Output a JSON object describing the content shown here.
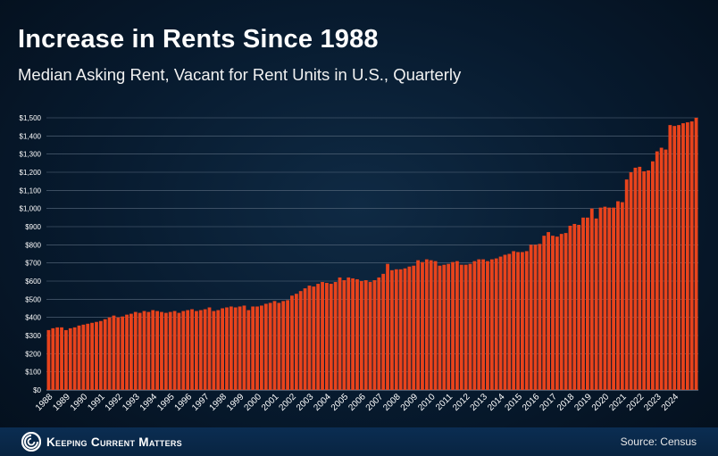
{
  "header": {
    "title": "Increase in Rents Since 1988",
    "subtitle": "Median Asking Rent, Vacant for Rent Units in U.S., Quarterly"
  },
  "footer": {
    "brand": "Keeping Current Matters",
    "source": "Source: Census"
  },
  "colors": {
    "bar": "#e8431c",
    "bar_edge": "#ff6a3c",
    "grid": "#5b6d80",
    "background": "#071a2e"
  },
  "chart_data": {
    "type": "bar",
    "title": "Increase in Rents Since 1988",
    "subtitle": "Median Asking Rent, Vacant for Rent Units in U.S., Quarterly",
    "xlabel": "",
    "ylabel": "",
    "ylim": [
      0,
      1500
    ],
    "yticks": [
      0,
      100,
      200,
      300,
      400,
      500,
      600,
      700,
      800,
      900,
      1000,
      1100,
      1200,
      1300,
      1400,
      1500
    ],
    "ytick_labels": [
      "$0",
      "$100",
      "$200",
      "$300",
      "$400",
      "$500",
      "$600",
      "$700",
      "$800",
      "$900",
      "$1,000",
      "$1,100",
      "$1,200",
      "$1,300",
      "$1,400",
      "$1,500"
    ],
    "grid": true,
    "legend": "none",
    "x_labels": [
      "1988",
      "1989",
      "1990",
      "1991",
      "1992",
      "1993",
      "1994",
      "1995",
      "1996",
      "1997",
      "1998",
      "1999",
      "2000",
      "2001",
      "2002",
      "2003",
      "2004",
      "2005",
      "2006",
      "2007",
      "2008",
      "2009",
      "2010",
      "2011",
      "2012",
      "2013",
      "2014",
      "2015",
      "2016",
      "2017",
      "2018",
      "2019",
      "2020",
      "2021",
      "2022",
      "2023",
      "2024"
    ],
    "values": [
      330,
      340,
      345,
      345,
      330,
      340,
      345,
      355,
      360,
      365,
      370,
      375,
      380,
      390,
      400,
      410,
      400,
      405,
      415,
      420,
      430,
      425,
      435,
      430,
      440,
      435,
      430,
      425,
      430,
      435,
      425,
      435,
      440,
      445,
      435,
      440,
      445,
      455,
      435,
      440,
      450,
      455,
      460,
      455,
      460,
      465,
      440,
      460,
      460,
      465,
      475,
      480,
      490,
      480,
      490,
      495,
      520,
      530,
      545,
      560,
      575,
      570,
      585,
      595,
      590,
      585,
      595,
      620,
      605,
      620,
      615,
      610,
      600,
      605,
      595,
      605,
      620,
      640,
      695,
      660,
      665,
      665,
      670,
      680,
      685,
      715,
      705,
      720,
      715,
      710,
      685,
      690,
      695,
      705,
      710,
      690,
      690,
      695,
      710,
      720,
      720,
      710,
      720,
      725,
      735,
      745,
      750,
      765,
      760,
      760,
      765,
      800,
      800,
      805,
      850,
      870,
      850,
      845,
      860,
      865,
      905,
      915,
      910,
      950,
      950,
      1000,
      945,
      1005,
      1010,
      1005,
      1005,
      1040,
      1035,
      1160,
      1200,
      1225,
      1230,
      1205,
      1210,
      1260,
      1315,
      1335,
      1325,
      1460,
      1455,
      1460,
      1470,
      1475,
      1480,
      1500
    ]
  }
}
